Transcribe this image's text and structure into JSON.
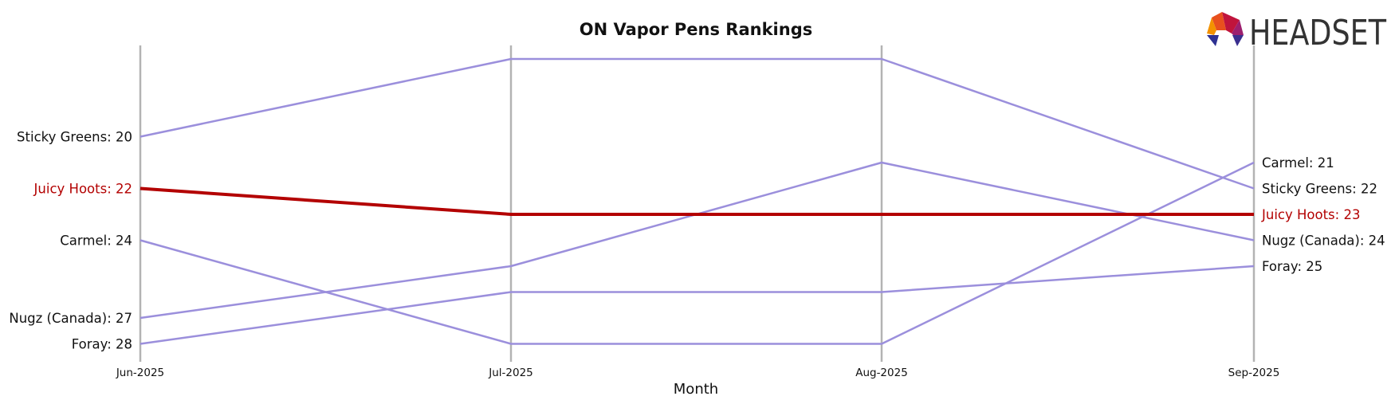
{
  "chart_data": {
    "type": "line",
    "title": "ON Vapor Pens Rankings",
    "xlabel": "Month",
    "ylabel": "",
    "x": [
      "Jun-2025",
      "Jul-2025",
      "Aug-2025",
      "Sep-2025"
    ],
    "y_inverted": true,
    "ylim": [
      17,
      29
    ],
    "grid": false,
    "highlight_color": "#b30000",
    "default_color": "#9b8fdc",
    "series": [
      {
        "name": "Sticky Greens",
        "values": [
          20,
          17,
          17,
          22
        ],
        "highlight": false,
        "start_label": "Sticky Greens: 20",
        "end_label": "Sticky Greens: 22"
      },
      {
        "name": "Juicy Hoots",
        "values": [
          22,
          23,
          23,
          23
        ],
        "highlight": true,
        "start_label": "Juicy Hoots: 22",
        "end_label": "Juicy Hoots: 23"
      },
      {
        "name": "Carmel",
        "values": [
          24,
          28,
          28,
          21
        ],
        "highlight": false,
        "start_label": "Carmel: 24",
        "end_label": "Carmel: 21"
      },
      {
        "name": "Nugz (Canada)",
        "values": [
          27,
          25,
          21,
          24
        ],
        "highlight": false,
        "start_label": "Nugz (Canada): 27",
        "end_label": "Nugz (Canada): 24"
      },
      {
        "name": "Foray",
        "values": [
          28,
          26,
          26,
          25
        ],
        "highlight": false,
        "start_label": "Foray: 28",
        "end_label": "Foray: 25"
      }
    ]
  },
  "logo": {
    "text": "HEADSET",
    "colors": [
      "#c0143c",
      "#8b1a5a",
      "#e8501e",
      "#f39200",
      "#2e3192",
      "#662d91"
    ]
  }
}
